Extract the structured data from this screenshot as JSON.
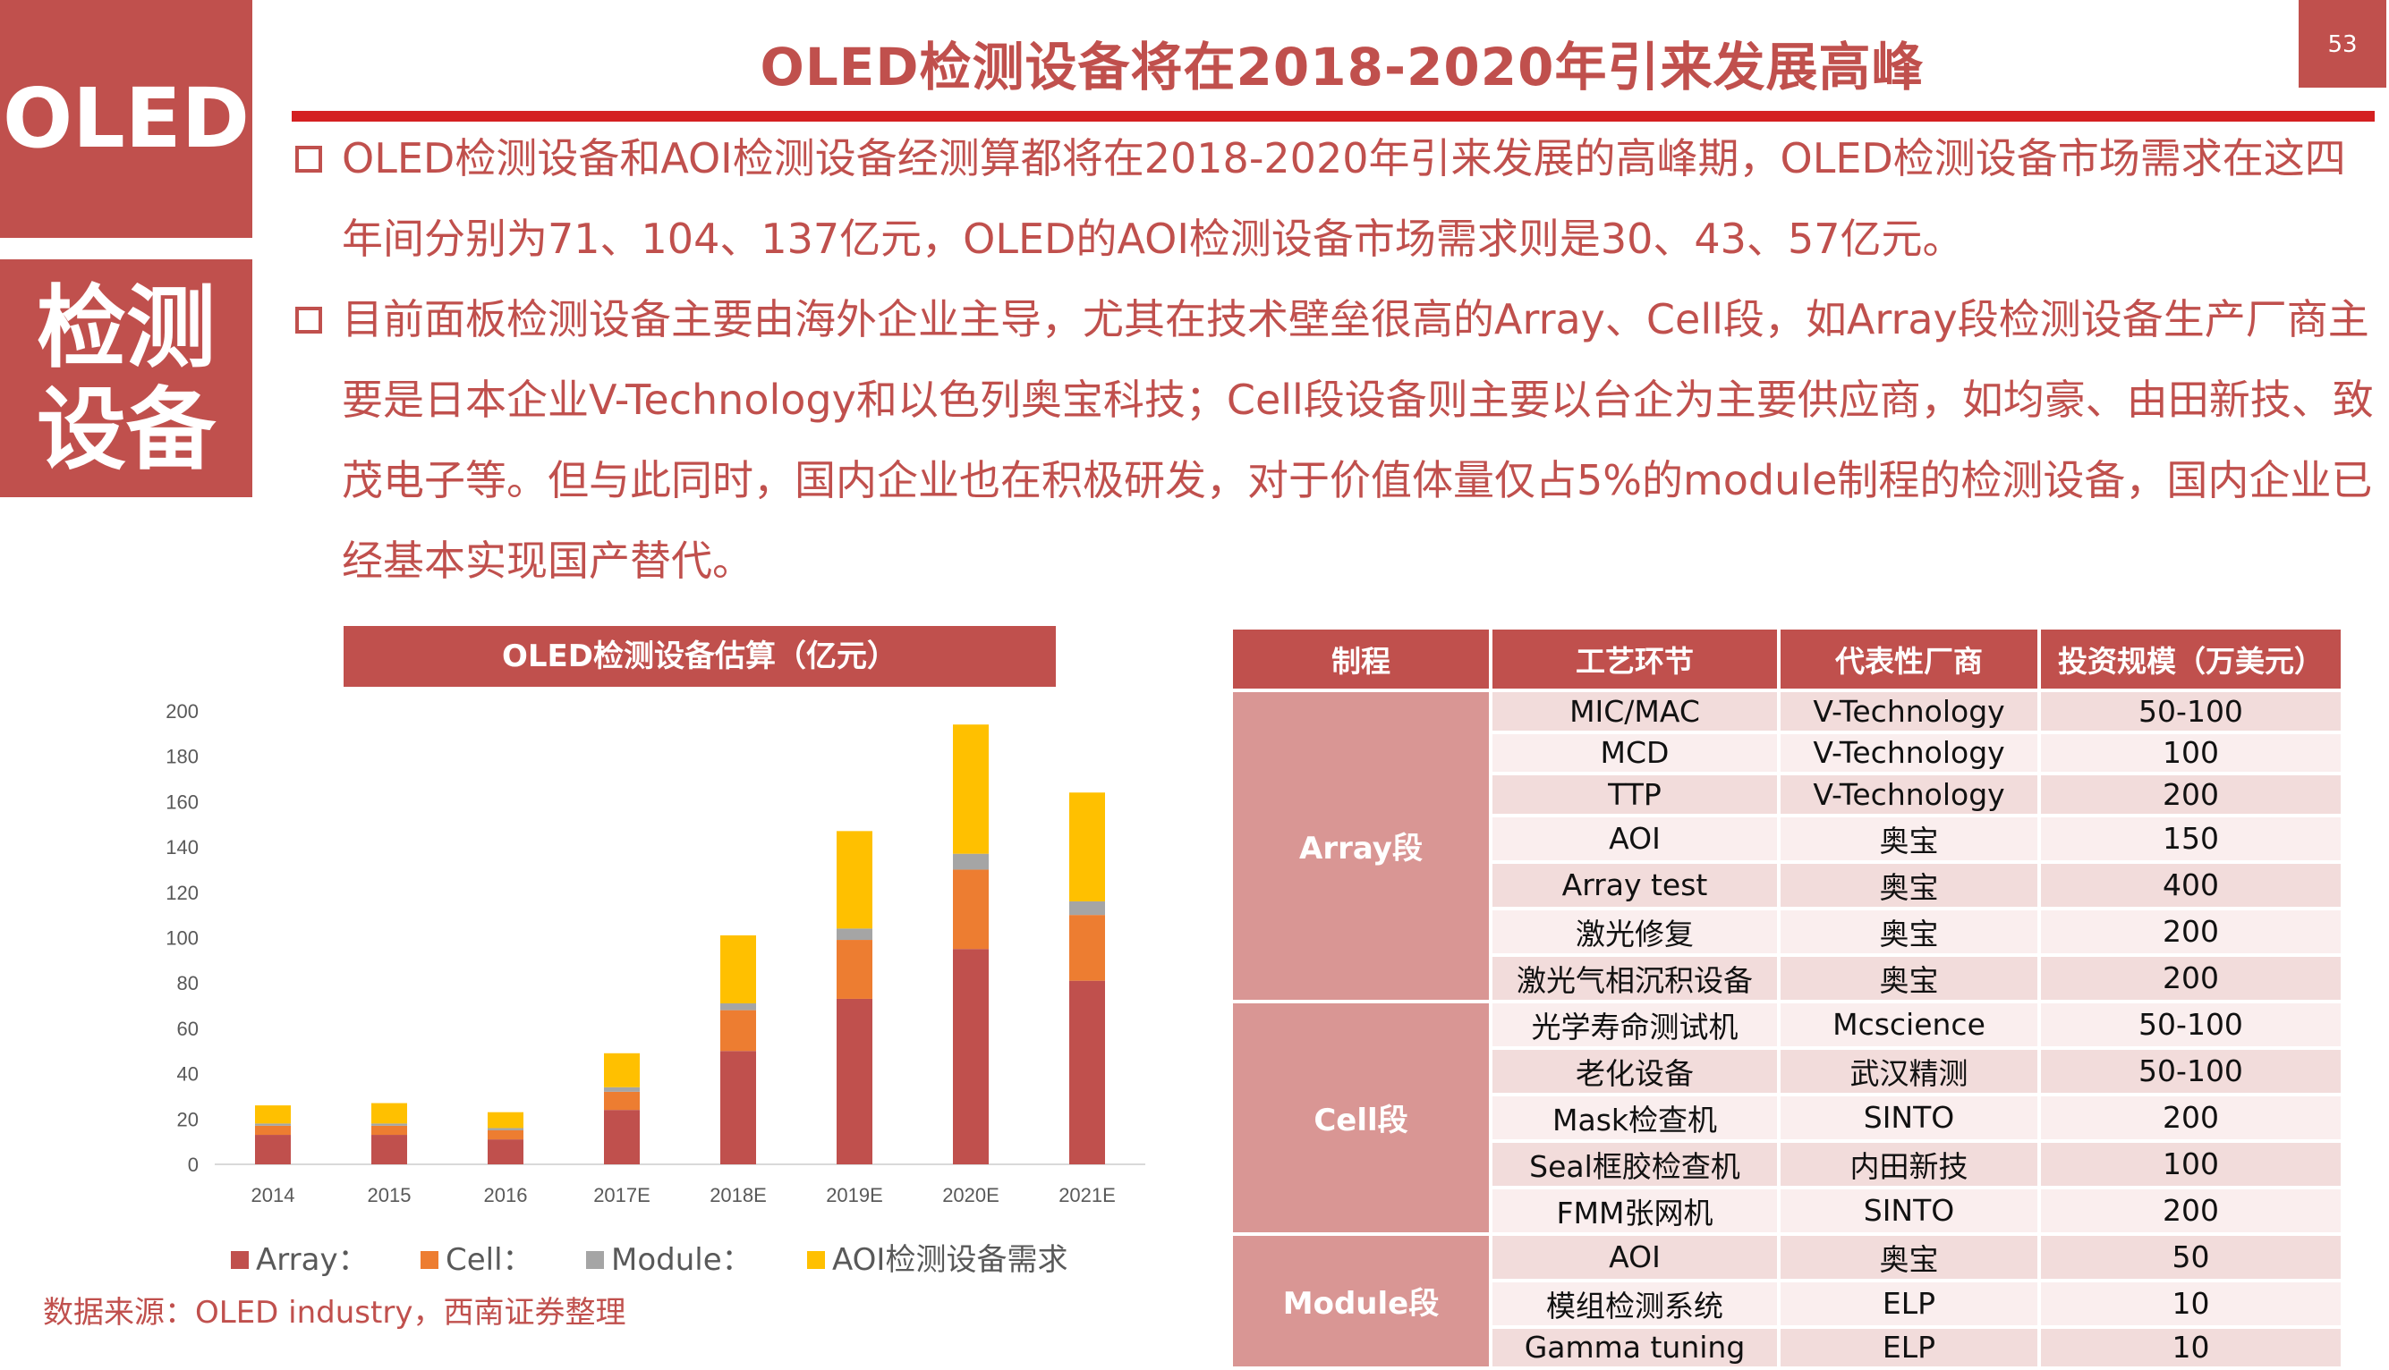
{
  "sidebar": {
    "top_label": "OLED",
    "bottom_label": "检测设备"
  },
  "page_number": "53",
  "title": "OLED检测设备将在2018-2020年引来发展高峰",
  "bullets": [
    "OLED检测设备和AOI检测设备经测算都将在2018-2020年引来发展的高峰期，OLED检测设备市场需求在这四年间分别为71、104、137亿元，OLED的AOI检测设备市场需求则是30、43、57亿元。",
    "目前面板检测设备主要由海外企业主导，尤其在技术壁垒很高的Array、Cell段，如Array段检测设备生产厂商主要是日本企业V-Technology和以色列奥宝科技；Cell段设备则主要以台企为主要供应商，如均豪、由田新技、致茂电子等。但与此同时，国内企业也在积极研发，对于价值体量仅占5%的module制程的检测设备，国内企业已经基本实现国产替代。"
  ],
  "source": "数据来源：OLED industry，西南证券整理",
  "chart_data": {
    "type": "bar",
    "stacked": true,
    "title": "OLED检测设备估算（亿元）",
    "categories": [
      "2014",
      "2015",
      "2016",
      "2017E",
      "2018E",
      "2019E",
      "2020E",
      "2021E"
    ],
    "series": [
      {
        "name": "Array：",
        "color": "#C0504D",
        "values": [
          13,
          13,
          11,
          24,
          50,
          73,
          95,
          81
        ]
      },
      {
        "name": "Cell：",
        "color": "#ED7D31",
        "values": [
          4,
          4,
          4,
          8,
          18,
          26,
          35,
          29
        ]
      },
      {
        "name": "Module：",
        "color": "#A5A5A5",
        "values": [
          1,
          1,
          1,
          2,
          3,
          5,
          7,
          6
        ]
      },
      {
        "name": "AOI检测设备需求",
        "color": "#FFC000",
        "values": [
          8,
          9,
          7,
          15,
          30,
          43,
          57,
          48
        ]
      }
    ],
    "ylim": [
      0,
      200
    ],
    "yticks": [
      "0",
      "20",
      "40",
      "60",
      "80",
      "100",
      "120",
      "140",
      "160",
      "180",
      "200"
    ],
    "grid": false,
    "legend": "bottom",
    "xlabel": "",
    "ylabel": ""
  },
  "table": {
    "headers": [
      "制程",
      "工艺环节",
      "代表性厂商",
      "投资规模（万美元）"
    ],
    "groups": [
      {
        "stage": "Array段",
        "rows": [
          [
            "MIC/MAC",
            "V-Technology",
            "50-100"
          ],
          [
            "MCD",
            "V-Technology",
            "100"
          ],
          [
            "TTP",
            "V-Technology",
            "200"
          ],
          [
            "AOI",
            "奥宝",
            "150"
          ],
          [
            "Array test",
            "奥宝",
            "400"
          ],
          [
            "激光修复",
            "奥宝",
            "200"
          ],
          [
            "激光气相沉积设备",
            "奥宝",
            "200"
          ]
        ]
      },
      {
        "stage": "Cell段",
        "rows": [
          [
            "光学寿命测试机",
            "Mcscience",
            "50-100"
          ],
          [
            "老化设备",
            "武汉精测",
            "50-100"
          ],
          [
            "Mask检查机",
            "SINTO",
            "200"
          ],
          [
            "Seal框胶检查机",
            "内田新技",
            "100"
          ],
          [
            "FMM张网机",
            "SINTO",
            "200"
          ]
        ]
      },
      {
        "stage": "Module段",
        "rows": [
          [
            "AOI",
            "奥宝",
            "50"
          ],
          [
            "模组检测系统",
            "ELP",
            "10"
          ],
          [
            "Gamma tuning",
            "ELP",
            "10"
          ]
        ]
      }
    ]
  }
}
